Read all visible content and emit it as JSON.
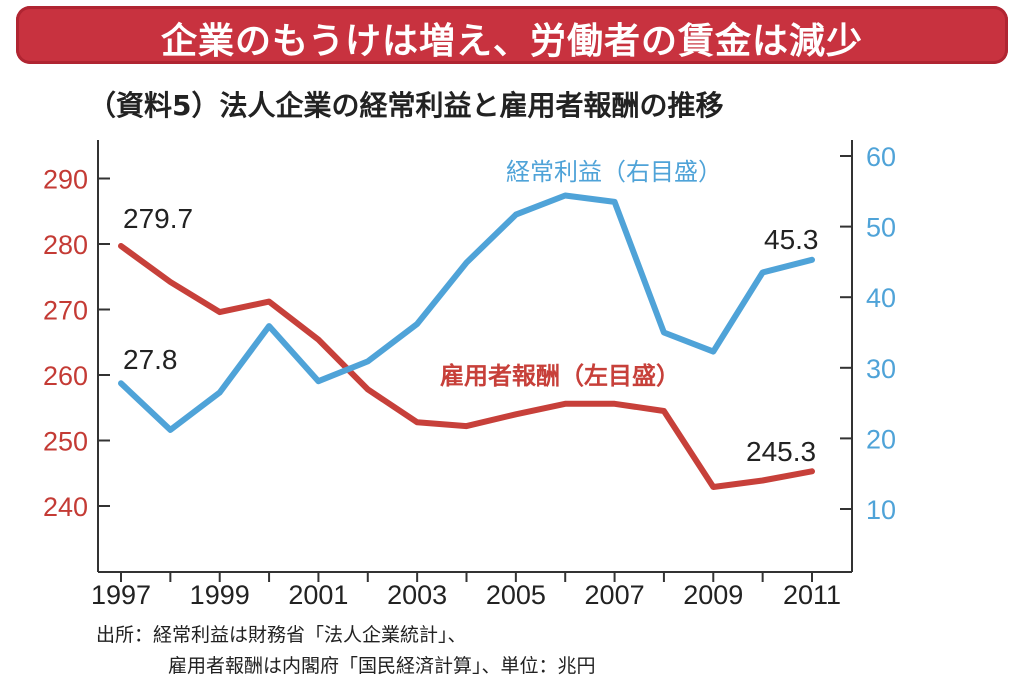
{
  "header": {
    "banner": "企業のもうけは増え、労働者の賃金は減少",
    "subtitle": "（資料5）法人企業の経常利益と雇用者報酬の推移"
  },
  "colors": {
    "banner_bg": "#c8323f",
    "compensation_line": "#c7403a",
    "profit_line": "#4fa3d8",
    "left_axis_text": "#c43b35",
    "right_axis_text": "#4fa3d8"
  },
  "chart_data": {
    "type": "line",
    "x": [
      1997,
      1998,
      1999,
      2000,
      2001,
      2002,
      2003,
      2004,
      2005,
      2006,
      2007,
      2008,
      2009,
      2010,
      2011
    ],
    "x_tick_labels": [
      "1997",
      "1999",
      "2001",
      "2003",
      "2005",
      "2007",
      "2009",
      "2011"
    ],
    "xlim": [
      1997,
      2011
    ],
    "left_axis": {
      "ylim": [
        232,
        296
      ],
      "tick_labels": [
        "240",
        "250",
        "260",
        "270",
        "280",
        "290"
      ]
    },
    "right_axis": {
      "ylim": [
        2,
        64
      ],
      "tick_labels": [
        "10",
        "20",
        "30",
        "40",
        "50",
        "60"
      ]
    },
    "series": [
      {
        "name": "雇用者報酬（左目盛）",
        "axis": "left",
        "values": [
          279.7,
          274.2,
          269.6,
          271.2,
          265.4,
          257.8,
          252.8,
          252.2,
          254.0,
          255.6,
          255.6,
          254.5,
          242.9,
          243.9,
          245.3
        ]
      },
      {
        "name": "経常利益（右目盛）",
        "axis": "right",
        "values": [
          27.8,
          21.2,
          26.5,
          35.9,
          28.1,
          30.9,
          36.2,
          44.9,
          51.7,
          54.4,
          53.5,
          35.0,
          32.3,
          43.5,
          45.3
        ]
      }
    ],
    "annotations": {
      "compensation_start": "279.7",
      "compensation_end": "245.3",
      "profit_start": "27.8",
      "profit_end": "45.3"
    }
  },
  "source": {
    "line1": "出所：経常利益は財務省「法人企業統計」、",
    "line2": "雇用者報酬は内閣府「国民経済計算」、単位：兆円"
  }
}
